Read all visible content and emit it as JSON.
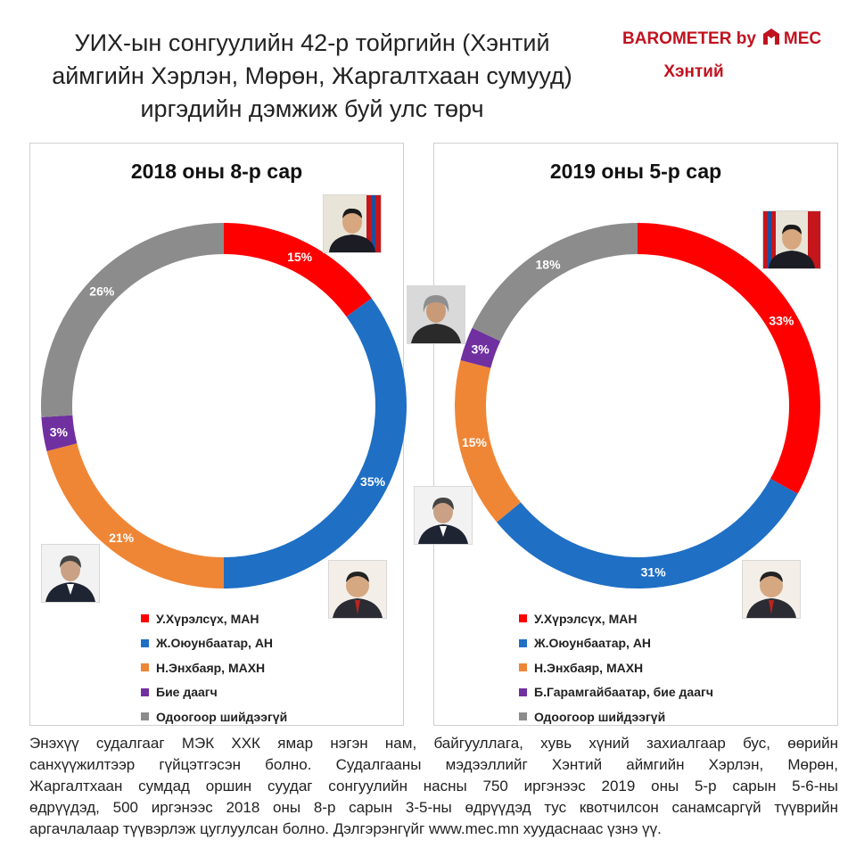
{
  "header": {
    "title_lines": [
      "УИХ-ын сонгуулийн 42-р тойргийн (Хэнтий",
      "аймгийн Хэрлэн, Мөрөн, Жаргалтхаан сумууд)",
      "иргэдийн дэмжиж буй улс төрч"
    ],
    "brand_prefix": "BAROMETER by",
    "brand_suffix": "MEC",
    "region": "Хэнтий"
  },
  "colors": {
    "man": "#ff0000",
    "an": "#1f6fc5",
    "makhn": "#ef8636",
    "independent": "#7030a0",
    "undecided": "#8c8c8c",
    "brand": "#c1121f"
  },
  "chart_data": [
    {
      "type": "pie",
      "donut": true,
      "title": "2018 оны 8-р сар",
      "labels": [
        "У.Хүрэлсүх, МАН",
        "Ж.Оюунбаатар, АН",
        "Н.Энхбаяр, МАХН",
        "Бие даагч",
        "Одоогоор шийдээгүй"
      ],
      "values": [
        15,
        35,
        21,
        3,
        26
      ],
      "value_labels": [
        "15%",
        "35%",
        "21%",
        "3%",
        "26%"
      ],
      "colors": [
        "#ff0000",
        "#1f6fc5",
        "#ef8636",
        "#7030a0",
        "#8c8c8c"
      ],
      "legend_position": "bottom"
    },
    {
      "type": "pie",
      "donut": true,
      "title": "2019 оны 5-р сар",
      "labels": [
        "У.Хүрэлсүх, МАН",
        "Ж.Оюунбаатар, АН",
        "Н.Энхбаяр, МАХН",
        "Б.Гарамгайбаатар, бие даагч",
        "Одоогоор шийдээгүй"
      ],
      "values": [
        33,
        31,
        15,
        3,
        18
      ],
      "value_labels": [
        "33%",
        "31%",
        "15%",
        "3%",
        "18%"
      ],
      "colors": [
        "#ff0000",
        "#1f6fc5",
        "#ef8636",
        "#7030a0",
        "#8c8c8c"
      ],
      "legend_position": "bottom"
    }
  ],
  "footer": {
    "lines": [
      "Энэхүү судалгааг МЭК ХХК ямар нэгэн нам, байгууллага, хувь хүний захиалгаар бус, өөрийн",
      "санхүүжилтээр гүйцэтгэсэн болно. Судалгааны мэдээллийг Хэнтий аймгийн Хэрлэн, Мөрөн,",
      "Жаргалтхаан сумдад оршин суудаг сонгуулийн насны 750 иргэнээс 2019 оны 5-р сарын 5-6-ны",
      "өдрүүдэд, 500 иргэнээс 2018 оны 8-р сарын 3-5-ны өдрүүдэд тус квотчилсон санамсаргүй түүврийн",
      "аргачлалаар түүвэрлэж цуглуулсан болно. Дэлгэрэнгүйг www.mec.mn хуудаснаас үзнэ үү."
    ]
  }
}
